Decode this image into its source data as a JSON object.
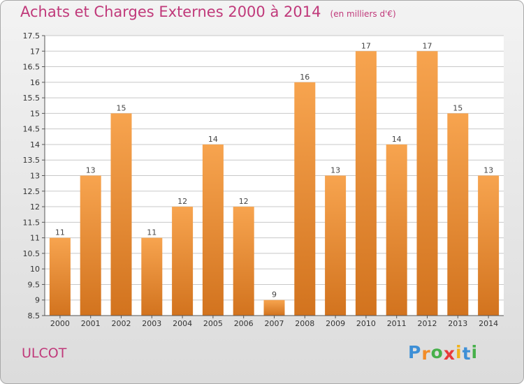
{
  "title": "Achats et Charges Externes 2000 à 2014",
  "subtitle": "(en milliers d'€)",
  "commune": "ULCOT",
  "logo": {
    "letters": [
      "P",
      "r",
      "o",
      "x",
      "i",
      "t",
      "i"
    ],
    "colors": [
      "#3d8fd6",
      "#f28c28",
      "#47b04b",
      "#e83a3a",
      "#f2b21b",
      "#3d8fd6",
      "#47b04b"
    ]
  },
  "colors": {
    "bar_top": "#f7a44f",
    "bar_bottom": "#d2731e",
    "gridline": "#c8c8c8",
    "title": "#c0397a"
  },
  "chart_data": {
    "type": "bar",
    "title": "Achats et Charges Externes 2000 à 2014",
    "categories": [
      "2000",
      "2001",
      "2002",
      "2003",
      "2004",
      "2005",
      "2006",
      "2007",
      "2008",
      "2009",
      "2010",
      "2011",
      "2012",
      "2013",
      "2014"
    ],
    "values": [
      11,
      13,
      15,
      11,
      12,
      14,
      12,
      9,
      16,
      13,
      17,
      14,
      17,
      15,
      13
    ],
    "data_labels": [
      "11",
      "13",
      "15",
      "11",
      "12",
      "14",
      "12",
      "9",
      "16",
      "13",
      "17",
      "14",
      "17",
      "15",
      "13"
    ],
    "ylim": [
      8.5,
      17.5
    ],
    "yticks": [
      8.5,
      9,
      9.5,
      10,
      10.5,
      11,
      11.5,
      12,
      12.5,
      13,
      13.5,
      14,
      14.5,
      15,
      15.5,
      16,
      16.5,
      17,
      17.5
    ],
    "ytick_labels": [
      "8.5",
      "9",
      "9.5",
      "10",
      "10.5",
      "11",
      "11.5",
      "12",
      "12.5",
      "13",
      "13.5",
      "14",
      "14.5",
      "15",
      "15.5",
      "16",
      "16.5",
      "17",
      "17.5"
    ],
    "grid": true,
    "xlabel": "",
    "ylabel": ""
  }
}
